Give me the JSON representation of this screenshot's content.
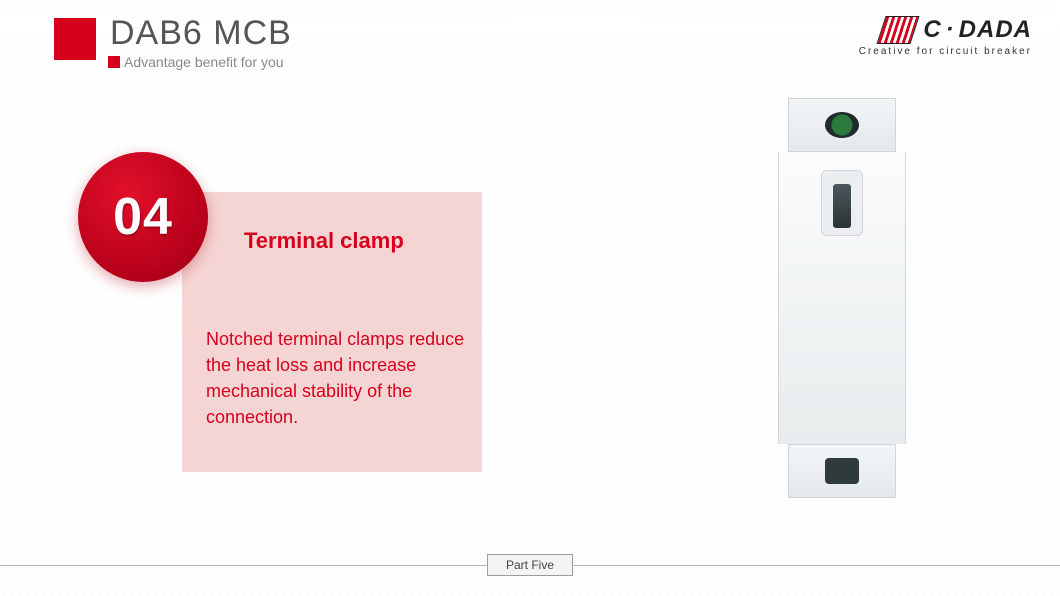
{
  "header": {
    "title": "DAB6 MCB",
    "subtitle": "Advantage benefit for you"
  },
  "logo": {
    "brand_left": "C",
    "brand_right": "DADA",
    "tagline": "Creative for circuit breaker"
  },
  "feature": {
    "number": "04",
    "title": "Terminal clamp",
    "body": "Notched terminal clamps reduce the heat loss and increase mechanical stability of the connection."
  },
  "footer": {
    "part_label": "Part Five"
  },
  "colors": {
    "accent_red": "#d6001c",
    "pink_panel": "#f5d5d4",
    "text_gray": "#555555"
  }
}
